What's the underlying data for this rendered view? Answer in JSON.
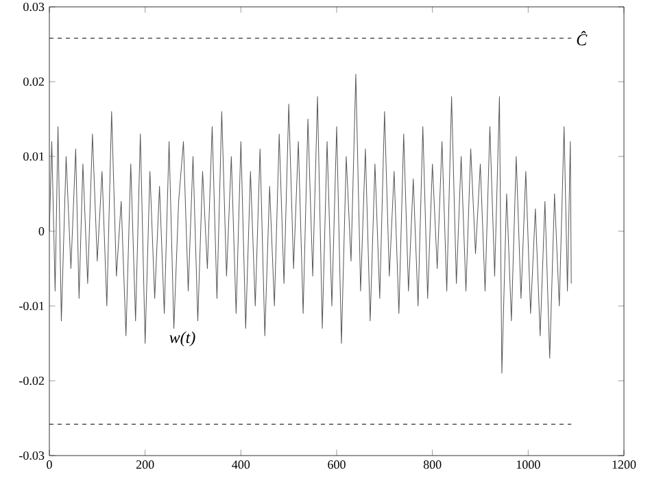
{
  "chart_data": {
    "type": "line",
    "x": [
      0,
      5,
      12,
      18,
      25,
      35,
      45,
      55,
      62,
      70,
      80,
      90,
      100,
      110,
      120,
      130,
      140,
      150,
      160,
      170,
      180,
      190,
      200,
      210,
      220,
      230,
      240,
      250,
      260,
      270,
      280,
      290,
      300,
      310,
      320,
      330,
      340,
      350,
      360,
      370,
      380,
      390,
      400,
      410,
      420,
      430,
      440,
      450,
      460,
      470,
      480,
      490,
      500,
      510,
      520,
      530,
      540,
      550,
      560,
      570,
      580,
      590,
      600,
      610,
      620,
      630,
      640,
      650,
      660,
      670,
      680,
      690,
      700,
      710,
      720,
      730,
      740,
      750,
      760,
      770,
      780,
      790,
      800,
      810,
      820,
      830,
      840,
      850,
      860,
      870,
      880,
      890,
      900,
      910,
      920,
      930,
      940,
      945,
      955,
      965,
      975,
      985,
      995,
      1005,
      1015,
      1025,
      1035,
      1045,
      1055,
      1065,
      1075,
      1082,
      1088,
      1090
    ],
    "series": [
      {
        "color": "#555555",
        "values": [
          0.0,
          0.012,
          -0.008,
          0.014,
          -0.012,
          0.01,
          -0.005,
          0.011,
          -0.009,
          0.009,
          -0.007,
          0.013,
          -0.004,
          0.008,
          -0.01,
          0.016,
          -0.006,
          0.004,
          -0.014,
          0.009,
          -0.012,
          0.013,
          -0.015,
          0.008,
          -0.009,
          0.006,
          -0.011,
          0.012,
          -0.013,
          0.004,
          0.012,
          -0.008,
          0.01,
          -0.012,
          0.008,
          -0.005,
          0.014,
          -0.009,
          0.016,
          -0.006,
          0.01,
          -0.011,
          0.012,
          -0.013,
          0.008,
          -0.01,
          0.011,
          -0.014,
          0.006,
          -0.01,
          0.013,
          -0.007,
          0.017,
          -0.005,
          0.012,
          -0.011,
          0.015,
          -0.006,
          0.018,
          -0.013,
          0.012,
          -0.01,
          0.014,
          -0.015,
          0.01,
          -0.004,
          0.021,
          -0.008,
          0.011,
          -0.012,
          0.009,
          -0.009,
          0.016,
          -0.006,
          0.008,
          -0.011,
          0.013,
          -0.008,
          0.007,
          -0.01,
          0.014,
          -0.009,
          0.009,
          -0.005,
          0.012,
          -0.008,
          0.018,
          -0.007,
          0.01,
          -0.008,
          0.011,
          -0.003,
          0.009,
          -0.008,
          0.014,
          -0.006,
          0.018,
          -0.019,
          0.005,
          -0.012,
          0.01,
          -0.009,
          0.008,
          -0.011,
          0.003,
          -0.014,
          0.004,
          -0.017,
          0.005,
          -0.01,
          0.014,
          -0.008,
          0.012,
          -0.007
        ]
      }
    ],
    "xlim": [
      0,
      1200
    ],
    "ylim": [
      -0.03,
      0.03
    ],
    "xticks": [
      0,
      200,
      400,
      600,
      800,
      1000,
      1200
    ],
    "yticks": [
      -0.03,
      -0.02,
      -0.01,
      0,
      0.01,
      0.02,
      0.03
    ],
    "ref_lines": [
      {
        "axis": "y",
        "value": 0.0258,
        "label": "Ĉ",
        "line_style": "dashed",
        "color": "#000000"
      },
      {
        "axis": "y",
        "value": -0.0258,
        "line_style": "dashed",
        "color": "#000000"
      }
    ],
    "annotations": [
      "w(t)"
    ]
  }
}
